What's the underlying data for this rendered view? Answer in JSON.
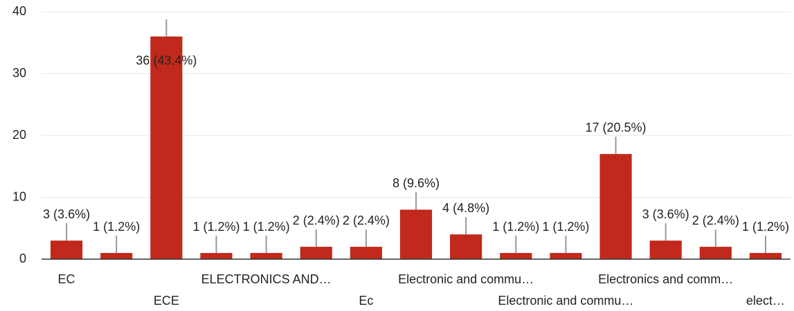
{
  "chart_data": {
    "type": "bar",
    "categories": [
      "EC",
      null,
      "ECE",
      null,
      "ELECTRONICS AND…",
      null,
      "Ec",
      null,
      "Electronic and commu…",
      null,
      "Electronic and commu…",
      null,
      "Electronics and comm…",
      null,
      "elect…"
    ],
    "values": [
      3,
      1,
      36,
      1,
      1,
      2,
      2,
      8,
      4,
      1,
      1,
      17,
      3,
      2,
      1
    ],
    "value_labels": [
      "3 (3.6%)",
      "1 (1.2%)",
      "36 (43.4%)",
      "1 (1.2%)",
      "1 (1.2%)",
      "2 (2.4%)",
      "2 (2.4%)",
      "8 (9.6%)",
      "4 (4.8%)",
      "1 (1.2%)",
      "1 (1.2%)",
      "17 (20.5%)",
      "3 (3.6%)",
      "2 (2.4%)",
      "1 (1.2%)"
    ],
    "color": "#c0291b",
    "ylim": [
      0,
      40
    ],
    "yticks": [
      0,
      10,
      20,
      30,
      40
    ],
    "grid": true
  }
}
